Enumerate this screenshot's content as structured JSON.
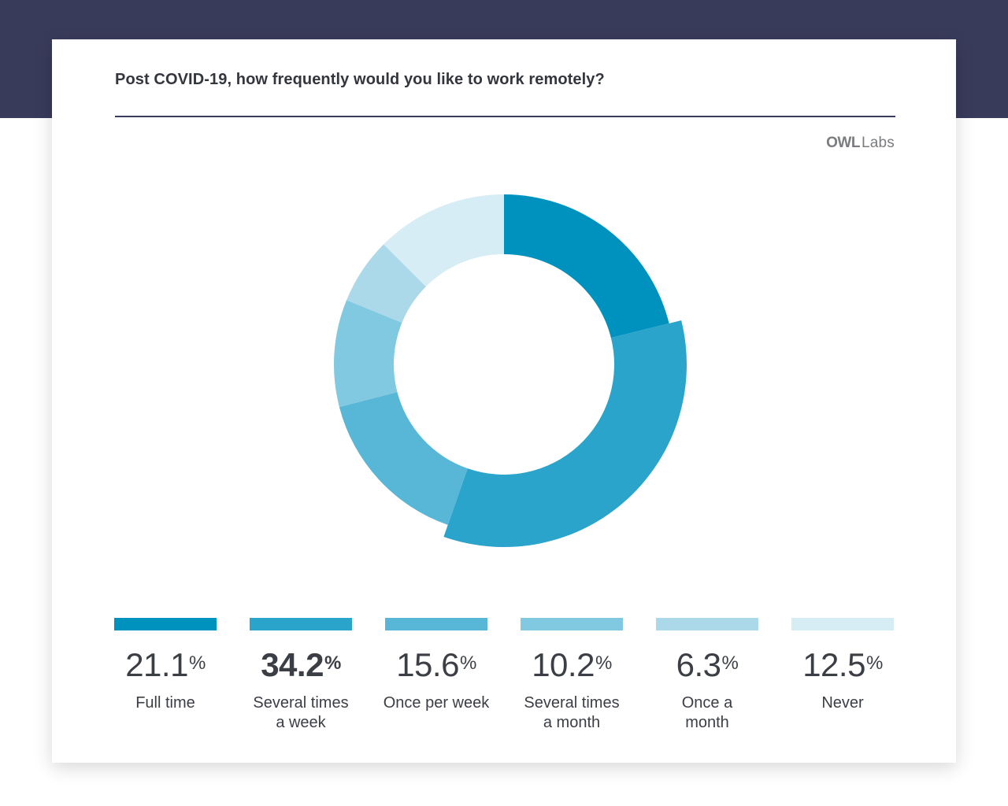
{
  "header": {
    "title": "Post COVID-19, how frequently would you like to work remotely?",
    "logo_owl": "OWL",
    "logo_labs": "Labs"
  },
  "colors": {
    "band": "#383b5a",
    "full_time": "#0092bf",
    "several_week": "#2ba4cb",
    "once_week": "#58b6d6",
    "several_month": "#80c9e0",
    "once_month": "#abd9e9",
    "never": "#d6edf5"
  },
  "chart_data": {
    "type": "pie",
    "style": "donut",
    "highlighted": "Several times a week",
    "slices": [
      {
        "label": "Full time",
        "value": 21.1,
        "value_text": "21.1",
        "color": "#0092bf"
      },
      {
        "label": "Several times\na week",
        "value": 34.2,
        "value_text": "34.2",
        "color": "#2ba4cb"
      },
      {
        "label": "Once per week",
        "value": 15.6,
        "value_text": "15.6",
        "color": "#58b6d6"
      },
      {
        "label": "Several times\na month",
        "value": 10.2,
        "value_text": "10.2",
        "color": "#80c9e0"
      },
      {
        "label": "Once a\nmonth",
        "value": 6.3,
        "value_text": "6.3",
        "color": "#abd9e9"
      },
      {
        "label": "Never",
        "value": 12.5,
        "value_text": "12.5",
        "color": "#d6edf5"
      }
    ],
    "percent_sign": "%"
  }
}
